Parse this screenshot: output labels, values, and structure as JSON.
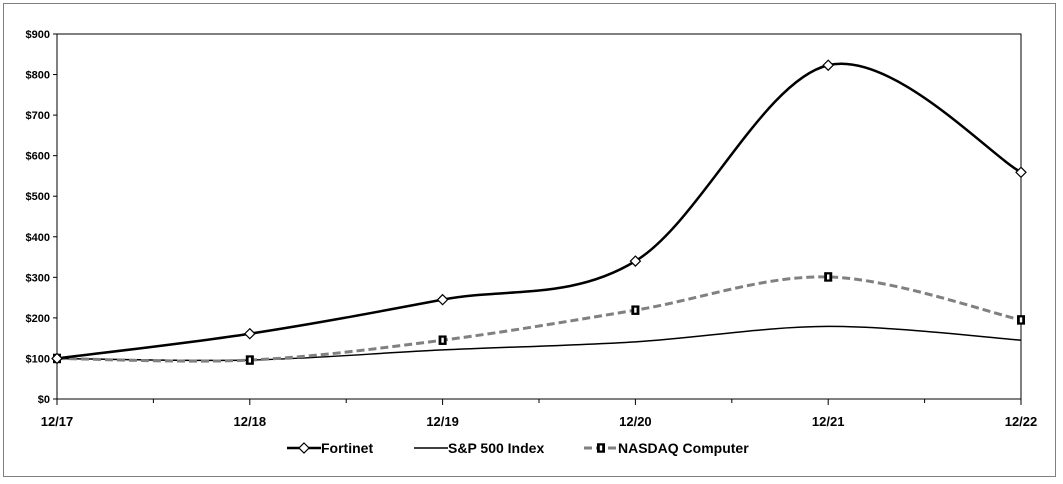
{
  "chart_data": {
    "type": "line",
    "categories": [
      "12/17",
      "12/18",
      "12/19",
      "12/20",
      "12/21",
      "12/22"
    ],
    "ylim": [
      0,
      900
    ],
    "yticks": [
      "$0",
      "$100",
      "$200",
      "$300",
      "$400",
      "$500",
      "$600",
      "$700",
      "$800",
      "$900"
    ],
    "ytick_values": [
      0,
      100,
      200,
      300,
      400,
      500,
      600,
      700,
      800,
      900
    ],
    "grid": false,
    "legend_position": "bottom",
    "series": [
      {
        "name": "Fortinet",
        "values": [
          100,
          161,
          245,
          340,
          823,
          559
        ],
        "color": "#000000",
        "style": "solid",
        "marker": "diamond"
      },
      {
        "name": "S&P 500 Index",
        "values": [
          100,
          96,
          121,
          141,
          179,
          145
        ],
        "color": "#000000",
        "style": "solid-thin",
        "marker": "none"
      },
      {
        "name": "NASDAQ Computer",
        "values": [
          100,
          96,
          145,
          219,
          301,
          195
        ],
        "color": "#808080",
        "style": "dashed",
        "marker": "hourglass"
      }
    ]
  }
}
